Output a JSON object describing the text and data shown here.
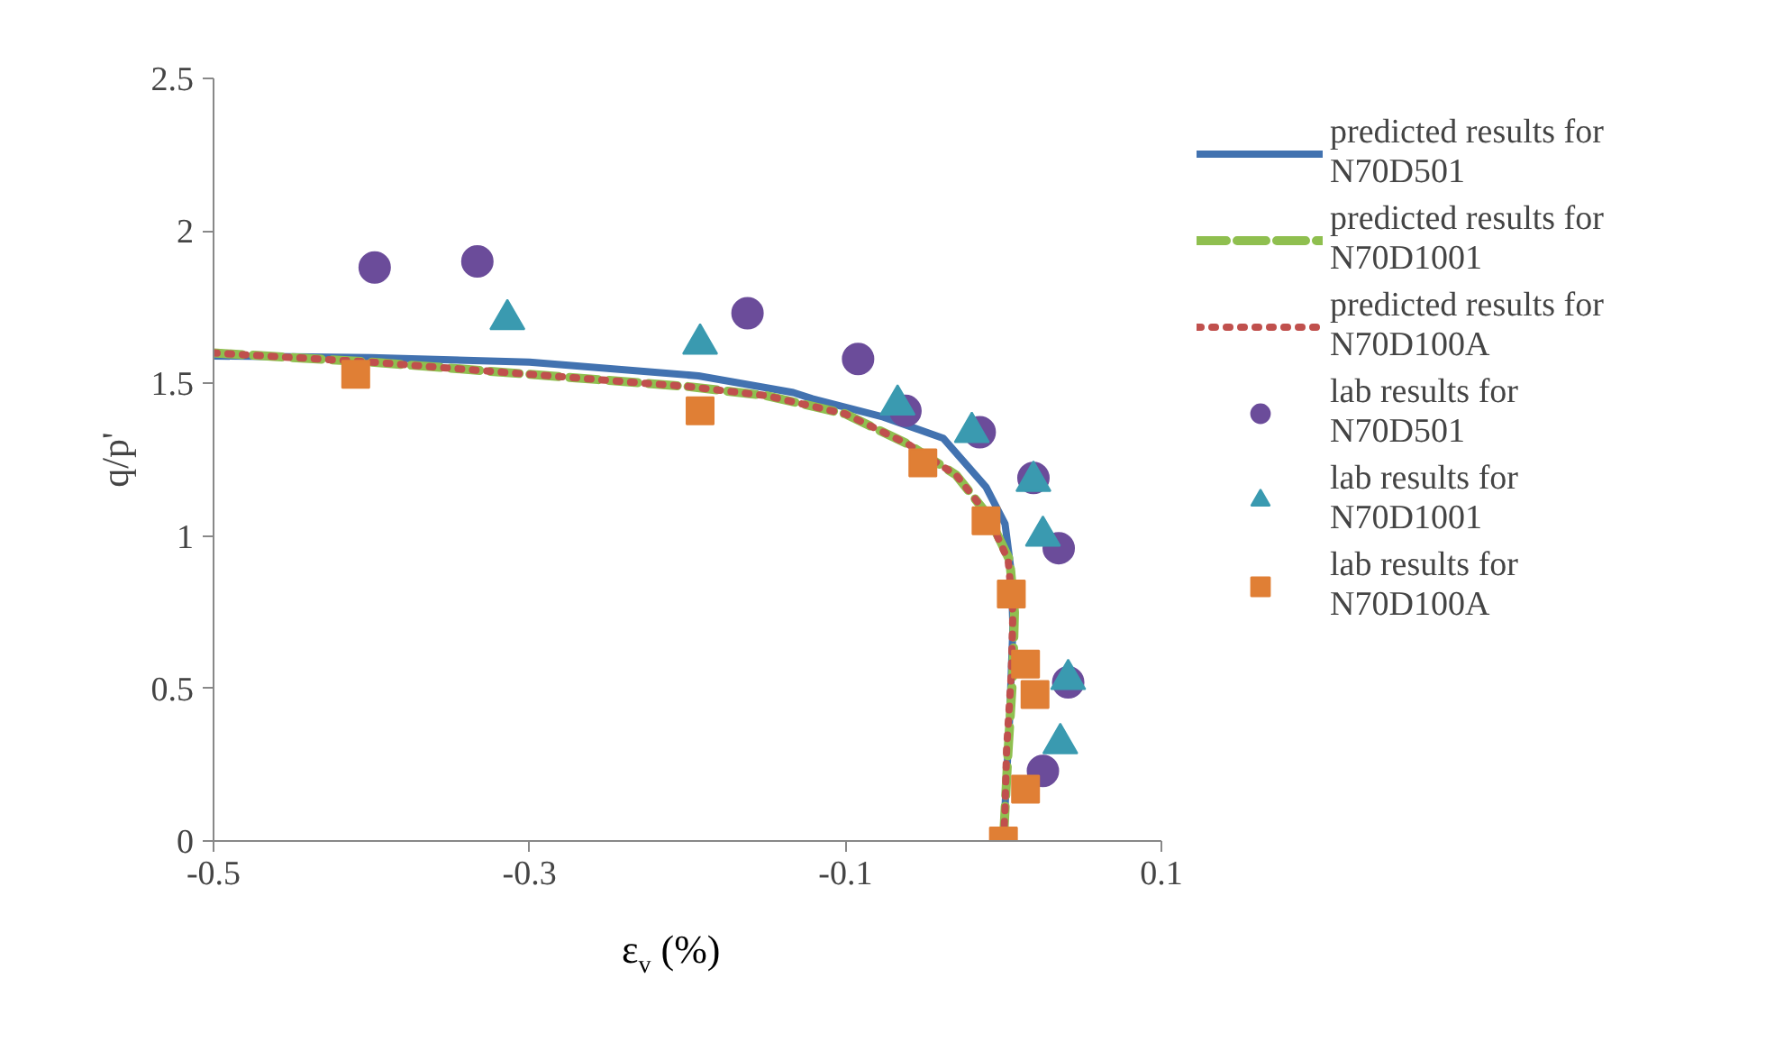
{
  "chart_data": {
    "type": "scatter",
    "xlabel": "ε$_{v}$ (%)",
    "ylabel": "q/p'",
    "xlim": [
      -0.5,
      0.1
    ],
    "xticks": [
      -0.5,
      -0.3,
      -0.1,
      0.1
    ],
    "ylim": [
      0,
      2.5
    ],
    "yticks": [
      0,
      0.5,
      1,
      1.5,
      2,
      2.5
    ],
    "grid": false,
    "legend": "right",
    "series": [
      {
        "name": "predicted results for N70D501",
        "type": "line",
        "line_style": "solid",
        "marker": "none",
        "color": "#4272b0",
        "x": [
          -0.5,
          -0.4,
          -0.3,
          -0.193,
          -0.133,
          -0.121,
          -0.076,
          -0.038,
          -0.011,
          0.001,
          0.005,
          0.006,
          0.004,
          0.001,
          0
        ],
        "values": [
          1.59,
          1.585,
          1.57,
          1.525,
          1.47,
          1.45,
          1.39,
          1.32,
          1.16,
          1.04,
          0.88,
          0.7,
          0.41,
          0.11,
          0
        ]
      },
      {
        "name": "predicted results for N70D1001",
        "type": "line",
        "line_style": "dashed",
        "marker": "none",
        "color": "#8fbf4f",
        "x": [
          -0.5,
          -0.4,
          -0.3,
          -0.2,
          -0.15,
          -0.1,
          -0.06,
          -0.03,
          -0.01,
          0.004,
          0.007,
          0.006,
          0.003,
          0.001,
          0
        ],
        "values": [
          1.6,
          1.57,
          1.53,
          1.49,
          1.46,
          1.4,
          1.3,
          1.2,
          1.07,
          0.92,
          0.75,
          0.55,
          0.3,
          0.1,
          0
        ]
      },
      {
        "name": "predicted results for N70D100A",
        "type": "line",
        "line_style": "dotted",
        "marker": "none",
        "color": "#c0504d",
        "x": [
          -0.5,
          -0.4,
          -0.3,
          -0.2,
          -0.15,
          -0.1,
          -0.06,
          -0.03,
          -0.01,
          0.003,
          0.006,
          0.005,
          0.002,
          0.001,
          0
        ],
        "values": [
          1.6,
          1.57,
          1.53,
          1.49,
          1.46,
          1.4,
          1.3,
          1.2,
          1.07,
          0.92,
          0.75,
          0.55,
          0.3,
          0.1,
          0
        ]
      },
      {
        "name": "lab results for N70D501",
        "type": "scatter",
        "marker": "circle",
        "color": "#6b4c9a",
        "x": [
          -0.398,
          -0.333,
          -0.162,
          -0.092,
          -0.062,
          -0.015,
          0.019,
          0.035,
          0.041,
          0.025
        ],
        "values": [
          1.88,
          1.9,
          1.73,
          1.58,
          1.41,
          1.34,
          1.19,
          0.96,
          0.52,
          0.23
        ]
      },
      {
        "name": "lab results for N70D1001",
        "type": "scatter",
        "marker": "triangle",
        "color": "#3a9ab0",
        "x": [
          -0.314,
          -0.192,
          -0.067,
          -0.02,
          0.019,
          0.025,
          0.041,
          0.036
        ],
        "values": [
          1.71,
          1.63,
          1.43,
          1.34,
          1.18,
          1.0,
          0.53,
          0.32
        ]
      },
      {
        "name": "lab results for N70D100A",
        "type": "scatter",
        "marker": "square",
        "color": "#e07f35",
        "x": [
          -0.41,
          -0.192,
          -0.051,
          -0.011,
          0.005,
          0.014,
          0.02,
          0.014,
          0
        ],
        "values": [
          1.53,
          1.41,
          1.24,
          1.05,
          0.81,
          0.58,
          0.48,
          0.17,
          0
        ]
      }
    ]
  }
}
